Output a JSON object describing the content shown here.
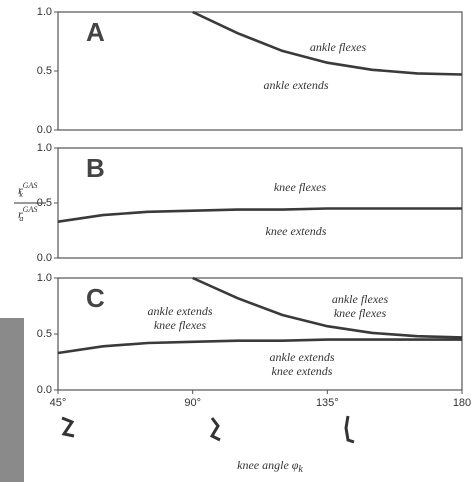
{
  "chart_data": [
    {
      "type": "line",
      "panel_label": "A",
      "xlim": [
        45,
        180
      ],
      "ylim": [
        0,
        1
      ],
      "yticks": [
        {
          "value": 0,
          "label": "0.0"
        },
        {
          "value": 0.5,
          "label": "0.5"
        },
        {
          "value": 1,
          "label": "1.0"
        }
      ],
      "x": [
        45,
        60,
        75,
        90,
        105,
        120,
        135,
        150,
        165,
        180
      ],
      "series": [
        {
          "color": "#3a3a3a",
          "values": [
            null,
            null,
            null,
            1.0,
            0.82,
            0.67,
            0.57,
            0.51,
            0.48,
            0.47
          ]
        }
      ],
      "annotations": [
        "ankle flexes",
        "ankle extends"
      ]
    },
    {
      "type": "line",
      "panel_label": "B",
      "xlim": [
        45,
        180
      ],
      "ylim": [
        0,
        1
      ],
      "yticks": [
        {
          "value": 0,
          "label": "0.0"
        },
        {
          "value": 0.5,
          "label": "0.5"
        },
        {
          "value": 1,
          "label": "1.0"
        }
      ],
      "x": [
        45,
        60,
        75,
        90,
        105,
        120,
        135,
        150,
        165,
        180
      ],
      "series": [
        {
          "color": "#3a3a3a",
          "values": [
            0.33,
            0.39,
            0.42,
            0.43,
            0.44,
            0.44,
            0.45,
            0.45,
            0.45,
            0.45
          ]
        }
      ],
      "annotations": [
        "knee flexes",
        "knee extends"
      ],
      "ylabel": {
        "numerator": {
          "base": "r",
          "sub": "k",
          "sup": "GAS"
        },
        "denominator": {
          "base": "r",
          "sub": "a",
          "sup": "GAS"
        }
      }
    },
    {
      "type": "line",
      "panel_label": "C",
      "xlim": [
        45,
        180
      ],
      "ylim": [
        0,
        1
      ],
      "yticks": [
        {
          "value": 0,
          "label": "0.0"
        },
        {
          "value": 0.5,
          "label": "0.5"
        },
        {
          "value": 1,
          "label": "1.0"
        }
      ],
      "xticks": [
        {
          "value": 45,
          "label": "45°"
        },
        {
          "value": 90,
          "label": "90°"
        },
        {
          "value": 135,
          "label": "135°"
        },
        180
      ],
      "x": [
        45,
        60,
        75,
        90,
        105,
        120,
        135,
        150,
        165,
        180
      ],
      "series": [
        {
          "color": "#3a3a3a",
          "values": [
            null,
            null,
            null,
            1.0,
            0.82,
            0.67,
            0.57,
            0.51,
            0.48,
            0.47
          ]
        },
        {
          "color": "#3a3a3a",
          "values": [
            0.33,
            0.39,
            0.42,
            0.43,
            0.44,
            0.44,
            0.45,
            0.45,
            0.45,
            0.45
          ]
        }
      ],
      "annotations": [
        "ankle extends",
        "knee flexes",
        "ankle flexes",
        "knee flexes",
        "ankle extends",
        "knee extends"
      ],
      "xlabel": "knee angle φ",
      "xlabel_sub": "k"
    }
  ]
}
